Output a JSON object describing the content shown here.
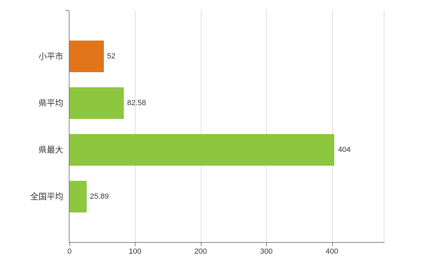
{
  "chart_data": {
    "type": "bar",
    "orientation": "horizontal",
    "title": "",
    "xlabel": "",
    "ylabel": "",
    "categories": [
      "小平市",
      "県平均",
      "県最大",
      "全国平均"
    ],
    "values": [
      52,
      82.58,
      404,
      25.89
    ],
    "value_labels": [
      "52",
      "82.58",
      "404",
      "25.89"
    ],
    "bar_colors": [
      "#e0751c",
      "#8dc63f",
      "#8dc63f",
      "#8dc63f"
    ],
    "xlim": [
      0,
      480
    ],
    "x_ticks": [
      0,
      100,
      200,
      300,
      400
    ],
    "grid": true,
    "legend": false
  },
  "colors": {
    "axis": "#7f7f7f",
    "gridline": "#dcdcdc",
    "text": "#333333",
    "background": "#ffffff"
  }
}
